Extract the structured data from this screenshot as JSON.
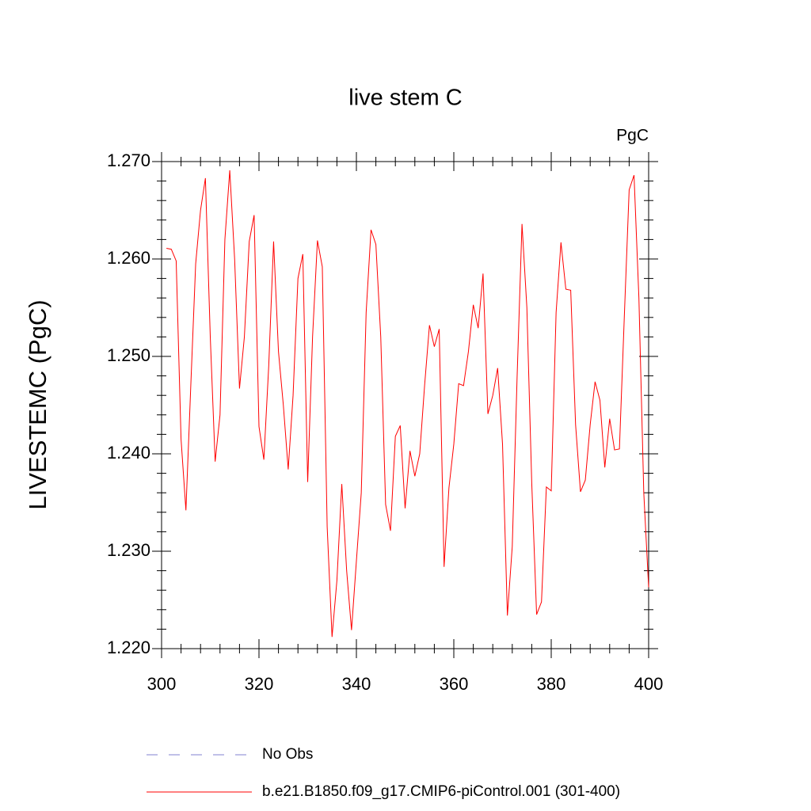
{
  "chart_data": {
    "type": "line",
    "title": "live stem C",
    "units": "PgC",
    "y_label": "LIVESTEMC  (PgC)",
    "x": [
      301,
      302,
      303,
      304,
      305,
      306,
      307,
      308,
      309,
      310,
      311,
      312,
      313,
      314,
      315,
      316,
      317,
      318,
      319,
      320,
      321,
      322,
      323,
      324,
      325,
      326,
      327,
      328,
      329,
      330,
      331,
      332,
      333,
      334,
      335,
      336,
      337,
      338,
      339,
      340,
      341,
      342,
      343,
      344,
      345,
      346,
      347,
      348,
      349,
      350,
      351,
      352,
      353,
      354,
      355,
      356,
      357,
      358,
      359,
      360,
      361,
      362,
      363,
      364,
      365,
      366,
      367,
      368,
      369,
      370,
      371,
      372,
      373,
      374,
      375,
      376,
      377,
      378,
      379,
      380,
      381,
      382,
      383,
      384,
      385,
      386,
      387,
      388,
      389,
      390,
      391,
      392,
      393,
      394,
      395,
      396,
      397,
      398,
      399,
      400
    ],
    "series": [
      {
        "name": "b.e21.B1850.f09_g17.CMIP6-piControl.001 (301-400)",
        "color": "#ff0000",
        "values": [
          1.2611,
          1.261,
          1.2598,
          1.2415,
          1.2342,
          1.247,
          1.2595,
          1.265,
          1.2683,
          1.252,
          1.2392,
          1.244,
          1.262,
          1.2691,
          1.26,
          1.2467,
          1.252,
          1.2618,
          1.2645,
          1.2428,
          1.2394,
          1.249,
          1.2618,
          1.2505,
          1.245,
          1.2384,
          1.246,
          1.258,
          1.2605,
          1.2371,
          1.252,
          1.2619,
          1.2592,
          1.2325,
          1.2212,
          1.227,
          1.2369,
          1.228,
          1.2219,
          1.229,
          1.236,
          1.2545,
          1.263,
          1.2615,
          1.252,
          1.2348,
          1.2321,
          1.2418,
          1.2429,
          1.2344,
          1.2403,
          1.2377,
          1.24,
          1.247,
          1.2532,
          1.251,
          1.2528,
          1.2284,
          1.2365,
          1.241,
          1.2472,
          1.247,
          1.2505,
          1.2553,
          1.2529,
          1.2585,
          1.2441,
          1.246,
          1.2488,
          1.241,
          1.2234,
          1.2305,
          1.248,
          1.2636,
          1.255,
          1.237,
          1.2235,
          1.2248,
          1.2366,
          1.2362,
          1.2545,
          1.2617,
          1.2569,
          1.2568,
          1.243,
          1.2361,
          1.2373,
          1.243,
          1.2474,
          1.2455,
          1.2386,
          1.2436,
          1.2404,
          1.2405,
          1.254,
          1.2671,
          1.2686,
          1.256,
          1.236,
          1.2263
        ]
      }
    ],
    "extra_legend": [
      {
        "name": "No Obs",
        "color": "#8080d0",
        "dashed": true
      }
    ],
    "xlim": [
      300,
      400
    ],
    "xticks": [
      300,
      320,
      340,
      360,
      380,
      400
    ],
    "ylim": [
      1.22,
      1.27
    ],
    "yticks": [
      {
        "value": 1.22,
        "label": "1.220"
      },
      {
        "value": 1.23,
        "label": "1.230"
      },
      {
        "value": 1.24,
        "label": "1.240"
      },
      {
        "value": 1.25,
        "label": "1.250"
      },
      {
        "value": 1.26,
        "label": "1.260"
      },
      {
        "value": 1.27,
        "label": "1.270"
      }
    ],
    "yminorticks": [
      1.222,
      1.224,
      1.226,
      1.228,
      1.232,
      1.234,
      1.236,
      1.238,
      1.242,
      1.244,
      1.246,
      1.248,
      1.252,
      1.254,
      1.256,
      1.258,
      1.262,
      1.264,
      1.266,
      1.268
    ],
    "xminorticks": [
      304,
      308,
      312,
      316,
      324,
      328,
      332,
      336,
      344,
      348,
      352,
      356,
      364,
      368,
      372,
      376,
      384,
      388,
      392,
      396
    ]
  }
}
